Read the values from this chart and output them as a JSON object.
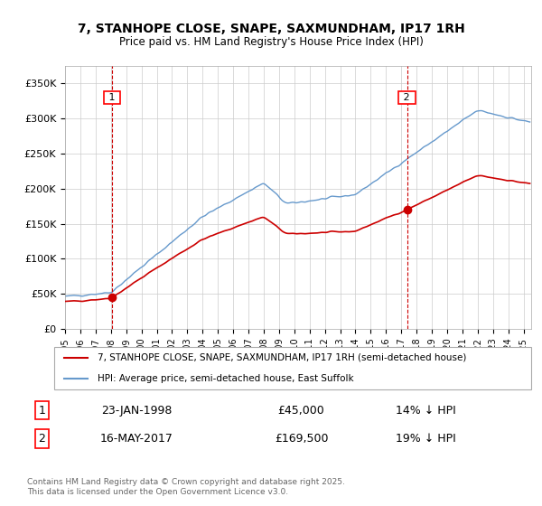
{
  "title": "7, STANHOPE CLOSE, SNAPE, SAXMUNDHAM, IP17 1RH",
  "subtitle": "Price paid vs. HM Land Registry's House Price Index (HPI)",
  "legend_line1": "7, STANHOPE CLOSE, SNAPE, SAXMUNDHAM, IP17 1RH (semi-detached house)",
  "legend_line2": "HPI: Average price, semi-detached house, East Suffolk",
  "sale1_label": "1",
  "sale1_date": "23-JAN-1998",
  "sale1_price": "£45,000",
  "sale1_hpi": "14% ↓ HPI",
  "sale2_label": "2",
  "sale2_date": "16-MAY-2017",
  "sale2_price": "£169,500",
  "sale2_hpi": "19% ↓ HPI",
  "footer": "Contains HM Land Registry data © Crown copyright and database right 2025.\nThis data is licensed under the Open Government Licence v3.0.",
  "property_color": "#cc0000",
  "hpi_color": "#6699cc",
  "sale_marker_color": "#cc0000",
  "vline_color": "#cc0000",
  "ylim": [
    0,
    375000
  ],
  "yticks": [
    0,
    50000,
    100000,
    150000,
    200000,
    250000,
    300000,
    350000
  ],
  "ytick_labels": [
    "£0",
    "£50K",
    "£100K",
    "£150K",
    "£200K",
    "£250K",
    "£300K",
    "£350K"
  ],
  "sale1_year": 1998.06,
  "sale1_value": 45000,
  "sale2_year": 2017.37,
  "sale2_value": 169500,
  "background_color": "#ffffff",
  "grid_color": "#cccccc"
}
